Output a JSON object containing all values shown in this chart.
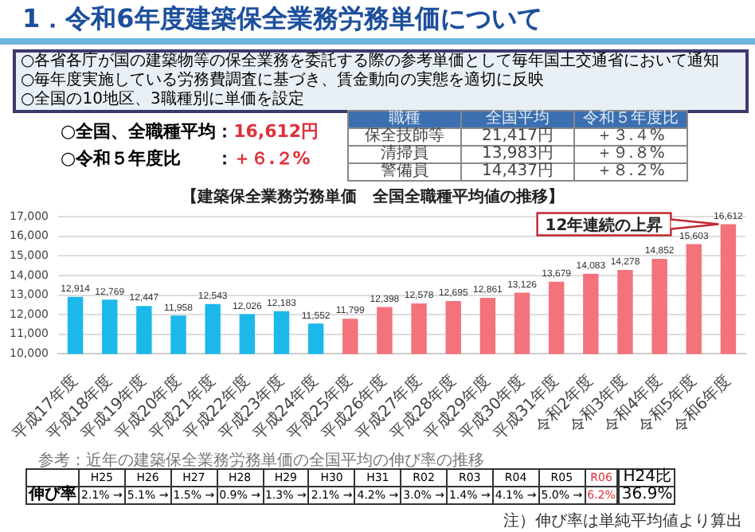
{
  "chart_data": {
    "type": "bar",
    "title": "【建築保全業務労務単価　全国全職種平均値の推移】",
    "categories": [
      "平成17年度",
      "平成18年度",
      "平成19年度",
      "平成20年度",
      "平成21年度",
      "平成22年度",
      "平成23年度",
      "平成24年度",
      "平成25年度",
      "平成26年度",
      "平成27年度",
      "平成28年度",
      "平成29年度",
      "平成30年度",
      "平成31年度",
      "令和2年度",
      "令和3年度",
      "令和4年度",
      "令和5年度",
      "令和6年度"
    ],
    "values": [
      12914,
      12769,
      12447,
      11958,
      12543,
      12026,
      12183,
      11552,
      11799,
      12398,
      12578,
      12695,
      12861,
      13126,
      13679,
      14083,
      14278,
      14852,
      15603,
      16612
    ],
    "value_labels": [
      "12,914",
      "12,769",
      "12,447",
      "11,958",
      "12,543",
      "12,026",
      "12,183",
      "11,552",
      "11,799",
      "12,398",
      "12,578",
      "12,695",
      "12,861",
      "13,126",
      "13,679",
      "14,083",
      "14,278",
      "14,852",
      "15,603",
      "16,612"
    ],
    "colors": [
      "#1cb8ea",
      "#1cb8ea",
      "#1cb8ea",
      "#1cb8ea",
      "#1cb8ea",
      "#1cb8ea",
      "#1cb8ea",
      "#1cb8ea",
      "#f4737b",
      "#f4737b",
      "#f4737b",
      "#f4737b",
      "#f4737b",
      "#f4737b",
      "#f4737b",
      "#f4737b",
      "#f4737b",
      "#f4737b",
      "#f4737b",
      "#f4737b"
    ],
    "ylim": [
      10000,
      17000
    ],
    "yticks": [
      {
        "value": 10000,
        "label": "10,000"
      },
      {
        "value": 11000,
        "label": "11,000"
      },
      {
        "value": 12000,
        "label": "12,000"
      },
      {
        "value": 13000,
        "label": "13,000"
      },
      {
        "value": 14000,
        "label": "14,000"
      },
      {
        "value": 15000,
        "label": "15,000"
      },
      {
        "value": 16000,
        "label": "16,000"
      },
      {
        "value": 17000,
        "label": "17,000"
      }
    ],
    "grid": "y",
    "legend": false,
    "annotations": [
      "1．令和6年度建築保全業務労務単価について",
      "○各省各庁が国の建築物等の保全業務を委託する際の参考単価として毎年国土交通省において通知",
      "○毎年度実施している労務費調査に基づき、賃金動向の実態を適切に反映",
      "○全国の10地区、3職種別に単価を設定",
      "○全国、全職種平均：",
      "16,612円",
      "○令和５年度比　　：",
      "＋６.２%",
      "職種",
      "全国平均",
      "令和５年度比",
      "保全技師等",
      "21,417円",
      "＋３.４%",
      "清掃員",
      "13,983円",
      "＋９.８%",
      "警備員",
      "14,437円",
      "＋８.２%",
      {
        "text": "12年連続の上昇",
        "x": "令和6年度",
        "y": 16612
      },
      "参考：近年の建築保全業務労務単価の全国平均の伸び率の推移",
      "H25",
      "H26",
      "H27",
      "H28",
      "H29",
      "H30",
      "H31",
      "R02",
      "R03",
      "R04",
      "R05",
      "R06",
      "H24比",
      "伸び率",
      "2.1% →",
      "5.1% →",
      "1.5% →",
      "0.9% →",
      "1.3% →",
      "2.1% →",
      "4.2% →",
      "3.0% →",
      "1.4% →",
      "4.1% →",
      "5.0% →",
      "6.2%",
      "36.9%",
      "注）伸び率は単純平均値より算出"
    ]
  }
}
